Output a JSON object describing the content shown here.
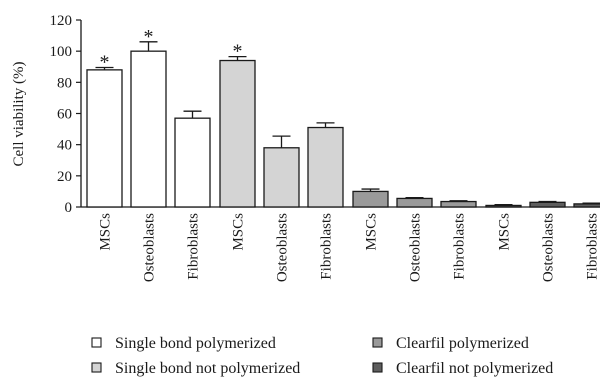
{
  "chart_data": {
    "type": "bar",
    "ylabel": "Cell viability (%)",
    "ylim": [
      0,
      120
    ],
    "yticks": [
      0,
      20,
      40,
      60,
      80,
      100,
      120
    ],
    "grid": false,
    "legend_position": "bottom",
    "groups": [
      {
        "name": "Single bond polymerized",
        "color": "#ffffff",
        "bars": [
          {
            "category": "MSCs",
            "value": 88,
            "error": 1.5,
            "significant": true
          },
          {
            "category": "Osteoblasts",
            "value": 100,
            "error": 6,
            "significant": true
          },
          {
            "category": "Fibroblasts",
            "value": 57,
            "error": 4.5,
            "significant": false
          }
        ]
      },
      {
        "name": "Single bond not polymerized",
        "color": "#d4d4d4",
        "bars": [
          {
            "category": "MSCs",
            "value": 94,
            "error": 2.5,
            "significant": true
          },
          {
            "category": "Osteoblasts",
            "value": 38,
            "error": 7.5,
            "significant": false
          },
          {
            "category": "Fibroblasts",
            "value": 51,
            "error": 3,
            "significant": false
          }
        ]
      },
      {
        "name": "Clearfil polymerized",
        "color": "#9a9a9a",
        "bars": [
          {
            "category": "MSCs",
            "value": 10,
            "error": 1.5,
            "significant": false
          },
          {
            "category": "Osteoblasts",
            "value": 5.5,
            "error": 0.5,
            "significant": false
          },
          {
            "category": "Fibroblasts",
            "value": 3.5,
            "error": 0.5,
            "significant": false
          }
        ]
      },
      {
        "name": "Clearfil not polymerized",
        "color": "#5e5e5e",
        "bars": [
          {
            "category": "MSCs",
            "value": 1,
            "error": 0.5,
            "significant": false
          },
          {
            "category": "Osteoblasts",
            "value": 3,
            "error": 0.5,
            "significant": false
          },
          {
            "category": "Fibroblasts",
            "value": 2,
            "error": 0.5,
            "significant": false
          }
        ]
      }
    ],
    "significance_marker": "*",
    "legend": [
      {
        "label": "Single bond polymerized",
        "color": "#ffffff"
      },
      {
        "label": "Clearfil polymerized",
        "color": "#9a9a9a"
      },
      {
        "label": "Single bond not polymerized",
        "color": "#d4d4d4"
      },
      {
        "label": "Clearfil not polymerized",
        "color": "#5e5e5e"
      }
    ]
  }
}
